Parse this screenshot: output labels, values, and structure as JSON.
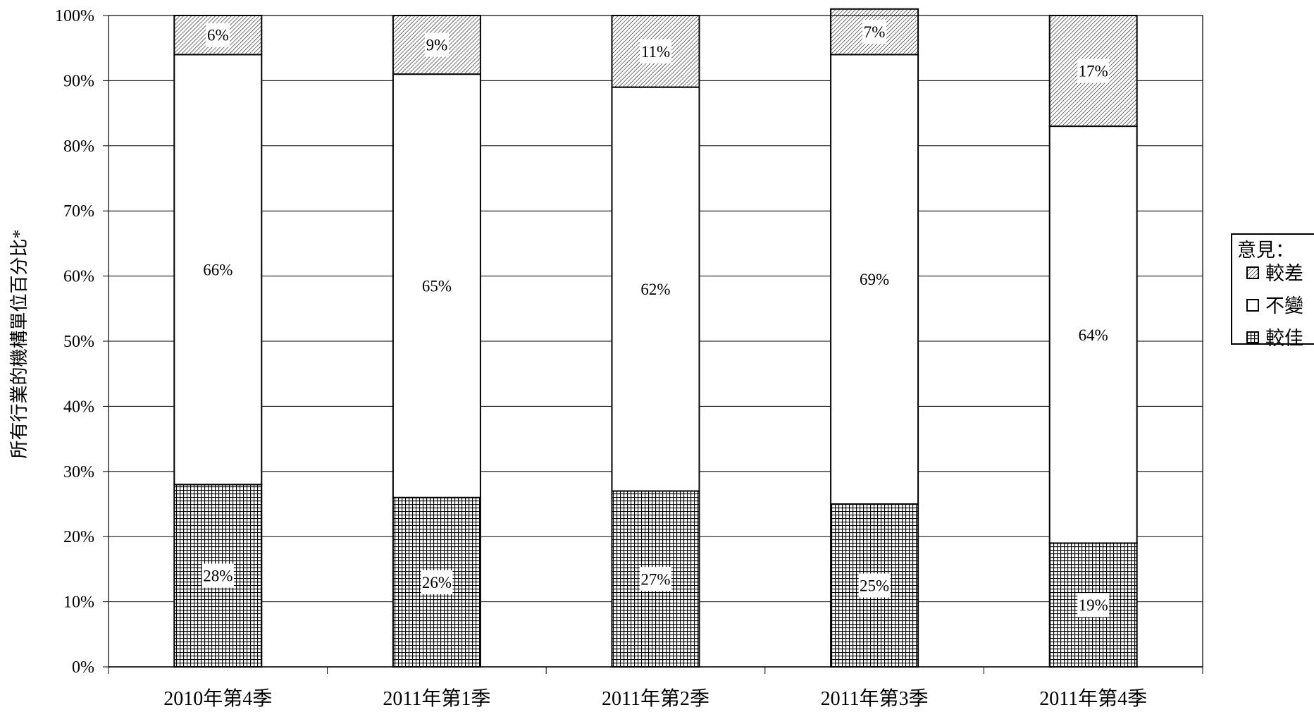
{
  "chart_data": {
    "type": "bar",
    "stacked": true,
    "title": "",
    "xlabel": "",
    "ylabel": "所有行業的機構單位百分比*",
    "ylim": [
      0,
      100
    ],
    "y_ticks": [
      "0%",
      "10%",
      "20%",
      "30%",
      "40%",
      "50%",
      "60%",
      "70%",
      "80%",
      "90%",
      "100%"
    ],
    "grid": true,
    "categories": [
      "2010年第4季",
      "2011年第1季",
      "2011年第2季",
      "2011年第3季",
      "2011年第4季"
    ],
    "series": [
      {
        "name": "較佳",
        "pattern": "grid",
        "values": [
          28,
          26,
          27,
          25,
          19
        ],
        "labels": [
          "28%",
          "26%",
          "27%",
          "25%",
          "19%"
        ]
      },
      {
        "name": "不變",
        "pattern": "blank",
        "values": [
          66,
          65,
          62,
          69,
          64
        ],
        "labels": [
          "66%",
          "65%",
          "62%",
          "69%",
          "64%"
        ]
      },
      {
        "name": "較差",
        "pattern": "diagonal",
        "values": [
          6,
          9,
          11,
          7,
          17
        ],
        "labels": [
          "6%",
          "9%",
          "11%",
          "7%",
          "17%"
        ]
      }
    ],
    "legend": {
      "title": "意見：",
      "position": "right",
      "order": [
        "較差",
        "不變",
        "較佳"
      ]
    }
  }
}
